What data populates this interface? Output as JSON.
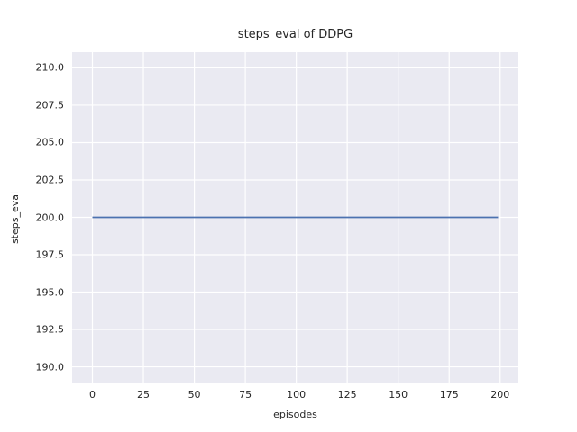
{
  "chart_data": {
    "type": "line",
    "title": "steps_eval of DDPG",
    "xlabel": "episodes",
    "ylabel": "steps_eval",
    "x_tick_values": [
      0,
      25,
      50,
      75,
      100,
      125,
      150,
      175,
      200
    ],
    "x_tick_labels": [
      "0",
      "25",
      "50",
      "75",
      "100",
      "125",
      "150",
      "175",
      "200"
    ],
    "y_tick_values": [
      190,
      192.5,
      195,
      197.5,
      200,
      202.5,
      205,
      207.5,
      210
    ],
    "y_tick_labels": [
      "190.0",
      "192.5",
      "195.0",
      "197.5",
      "200.0",
      "202.5",
      "205.0",
      "207.5",
      "210.0"
    ],
    "xlim": [
      -9.95,
      208.95
    ],
    "ylim": [
      188.95,
      211.05
    ],
    "grid": true,
    "legend_position": "none",
    "grid_color": "#ffffff",
    "background_color": "#eaeaf2",
    "figure_background": "#ffffff",
    "text_color": "#262626",
    "series": [
      {
        "name": "steps_eval",
        "color": "#4c72b0",
        "line_width": 1.8,
        "x": [
          0,
          199
        ],
        "y": [
          200,
          200
        ],
        "description": "constant value 200 for all episodes 0-199"
      }
    ]
  }
}
